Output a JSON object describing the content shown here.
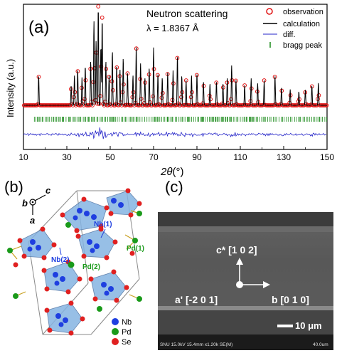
{
  "panel_a": {
    "label": "(a)",
    "annotation_title": "Neutron scattering",
    "annotation_lambda": "λ = 1.8367 Å",
    "legend": {
      "observation": "observation",
      "calculation": "calculation",
      "diff": "diff.",
      "bragg": "bragg peak"
    },
    "colors": {
      "observation": "#e01010",
      "calculation": "#000000",
      "diff": "#2323c8",
      "bragg": "#1a8a1a"
    }
  },
  "chart_data": {
    "type": "line",
    "xlabel_symbol": "2θ",
    "xlabel_unit": "(°)",
    "ylabel": "Intensity (a.u.)",
    "xlim": [
      10,
      150
    ],
    "xticks": [
      10,
      30,
      50,
      70,
      90,
      110,
      130,
      150
    ],
    "yticks_shown": false,
    "legend_position": "top-right",
    "peaks": [
      [
        17,
        0.3
      ],
      [
        32,
        0.2
      ],
      [
        33.5,
        0.3
      ],
      [
        35,
        0.36
      ],
      [
        37,
        0.28
      ],
      [
        38.5,
        0.4
      ],
      [
        41,
        0.45
      ],
      [
        42.5,
        0.85
      ],
      [
        43.5,
        0.65
      ],
      [
        44.5,
        1.0
      ],
      [
        45.7,
        0.6
      ],
      [
        46.3,
        0.88
      ],
      [
        48,
        0.45
      ],
      [
        49.5,
        0.3
      ],
      [
        51,
        0.55
      ],
      [
        53,
        0.4
      ],
      [
        54.5,
        0.36
      ],
      [
        56,
        0.48
      ],
      [
        58,
        0.32
      ],
      [
        60.5,
        0.3
      ],
      [
        62,
        0.6
      ],
      [
        64,
        0.42
      ],
      [
        66,
        0.28
      ],
      [
        68,
        0.38
      ],
      [
        70,
        0.58
      ],
      [
        72,
        0.32
      ],
      [
        74,
        0.28
      ],
      [
        76.5,
        0.33
      ],
      [
        79,
        0.35
      ],
      [
        81,
        0.5
      ],
      [
        83,
        0.3
      ],
      [
        85,
        0.25
      ],
      [
        87.5,
        0.3
      ],
      [
        90,
        0.32
      ],
      [
        93,
        0.24
      ],
      [
        96,
        0.22
      ],
      [
        99,
        0.24
      ],
      [
        102,
        0.22
      ],
      [
        104,
        0.28
      ],
      [
        106,
        0.4
      ],
      [
        108,
        0.26
      ],
      [
        112,
        0.2
      ],
      [
        115,
        0.27
      ],
      [
        118,
        0.22
      ],
      [
        121,
        0.25
      ],
      [
        126,
        0.3
      ],
      [
        129,
        0.18
      ],
      [
        133,
        0.16
      ],
      [
        137,
        0.14
      ],
      [
        140,
        0.16
      ],
      [
        143,
        0.2
      ],
      [
        146,
        0.23
      ]
    ],
    "baseline": 0.26,
    "bragg_peak_range": [
      15,
      150
    ]
  },
  "panel_b": {
    "label": "(b)",
    "axis_b": "b",
    "axis_c": "c",
    "axis_a": "a",
    "site_nb1": "Nb(1)",
    "site_nb2": "Nb(2)",
    "site_pd1": "Pd(1)",
    "site_pd2": "Pd(2)",
    "legend": {
      "nb": "Nb",
      "pd": "Pd",
      "se": "Se"
    },
    "colors": {
      "nb": "#1f3fe0",
      "pd": "#1a9a1a",
      "se": "#e02020",
      "polyhedra": "#7fb0e0"
    }
  },
  "panel_c": {
    "label": "(c)",
    "dir_c": "c* [1 0 2]",
    "dir_a": "a' [-2 0 1]",
    "dir_b": "b [0 1 0]",
    "scalebar": "10 μm",
    "info_text": "SNU 15.0kV 15.4mm x1.20k SE(M)",
    "info_scale": "40.0um"
  }
}
